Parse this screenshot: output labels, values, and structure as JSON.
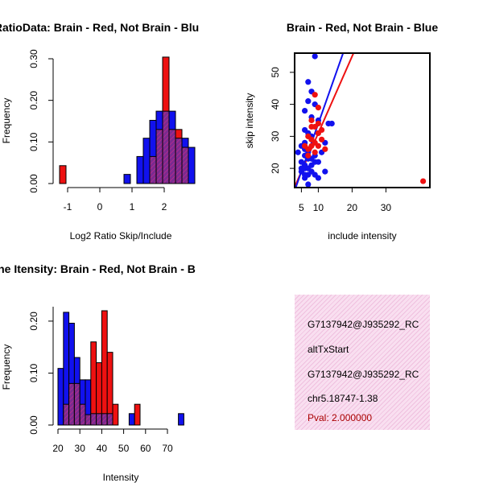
{
  "chart_data": [
    {
      "type": "bar",
      "title": "RatioData: Brain - Red, Not Brain - Blu",
      "xlabel": "Log2 Ratio Skip/Include",
      "ylabel": "Frequency",
      "xticks": [
        "-1",
        "0",
        "1",
        "2"
      ],
      "yticks": [
        "0.00",
        "0.10",
        "0.20",
        "0.30"
      ],
      "ylim": [
        0,
        0.3
      ],
      "x_start": -1.25,
      "bin_width": 0.2,
      "series": [
        {
          "name": "Brain",
          "color": "#ee1111",
          "values": [
            0.043,
            0,
            0,
            0,
            0,
            0,
            0,
            0,
            0,
            0,
            0,
            0,
            0,
            0,
            0.065,
            0.13,
            0.304,
            0.13,
            0.13,
            0.087,
            0
          ]
        },
        {
          "name": "Not Brain",
          "color": "#1111ee",
          "values": [
            0,
            0,
            0,
            0,
            0,
            0,
            0,
            0,
            0,
            0,
            0.022,
            0,
            0.065,
            0.109,
            0.152,
            0.174,
            0.174,
            0.174,
            0.109,
            0.109,
            0.087
          ]
        }
      ],
      "overlap_color": "#8b238b"
    },
    {
      "type": "scatter",
      "title": "Brain - Red, Not Brain - Blue",
      "xlabel": "include intensity",
      "ylabel": "skip intensity",
      "xticks": [
        "5",
        "10",
        "20",
        "30"
      ],
      "yticks": [
        "20",
        "30",
        "40",
        "50"
      ],
      "xlim": [
        3,
        43
      ],
      "ylim": [
        14,
        56
      ],
      "series": [
        {
          "name": "Brain",
          "color": "#ee1111",
          "points": [
            [
              41,
              16
            ],
            [
              9,
              43
            ],
            [
              10,
              39
            ],
            [
              8,
              35
            ],
            [
              9,
              33
            ],
            [
              10,
              31
            ],
            [
              11,
              29
            ],
            [
              8,
              27
            ],
            [
              7,
              26
            ],
            [
              9,
              25
            ],
            [
              10,
              27
            ],
            [
              12,
              26
            ],
            [
              7,
              30
            ],
            [
              8,
              33
            ],
            [
              10,
              34
            ],
            [
              9,
              28
            ],
            [
              6,
              27
            ],
            [
              11,
              32
            ],
            [
              7,
              24
            ],
            [
              8,
              29
            ]
          ],
          "fit": {
            "intercept": 7.0,
            "slope": 2.4
          }
        },
        {
          "name": "Not Brain",
          "color": "#1111ee",
          "points": [
            [
              9,
              55
            ],
            [
              7,
              47
            ],
            [
              8,
              44
            ],
            [
              7,
              41
            ],
            [
              9,
              40
            ],
            [
              6,
              38
            ],
            [
              8,
              36
            ],
            [
              10,
              35
            ],
            [
              13,
              34
            ],
            [
              14,
              34
            ],
            [
              6,
              32
            ],
            [
              7,
              31
            ],
            [
              8,
              29
            ],
            [
              5,
              27
            ],
            [
              4,
              25
            ],
            [
              6,
              24
            ],
            [
              7,
              23
            ],
            [
              9,
              22
            ],
            [
              6,
              21
            ],
            [
              5,
              20
            ],
            [
              6,
              20
            ],
            [
              8,
              19
            ],
            [
              12,
              19
            ],
            [
              7,
              18
            ],
            [
              6,
              17
            ],
            [
              9,
              18
            ],
            [
              10,
              17
            ],
            [
              5,
              22
            ],
            [
              6,
              26
            ],
            [
              6,
              28
            ],
            [
              7,
              25
            ],
            [
              8,
              21
            ],
            [
              7,
              15
            ],
            [
              9,
              24
            ],
            [
              8,
              23
            ],
            [
              7,
              20
            ],
            [
              5,
              19
            ],
            [
              6,
              18
            ],
            [
              10,
              22
            ],
            [
              11,
              25
            ],
            [
              8,
              30
            ],
            [
              12,
              28
            ]
          ],
          "fit": {
            "intercept": 4.0,
            "slope": 3.0
          }
        }
      ]
    },
    {
      "type": "bar",
      "title": "ne Itensity: Brain - Red, Not Brain - B",
      "xlabel": "Intensity",
      "ylabel": "Frequency",
      "xticks": [
        "20",
        "30",
        "40",
        "50",
        "60",
        "70"
      ],
      "yticks": [
        "0.00",
        "0.10",
        "0.20"
      ],
      "ylim": [
        0,
        0.22
      ],
      "x_start": 20,
      "bin_width": 2.5,
      "series": [
        {
          "name": "Brain",
          "color": "#ee1111",
          "values": [
            0,
            0.04,
            0.08,
            0.08,
            0.04,
            0.02,
            0.16,
            0.12,
            0.22,
            0.14,
            0.04,
            0,
            0,
            0,
            0.04,
            0,
            0,
            0,
            0,
            0,
            0,
            0,
            0
          ]
        },
        {
          "name": "Not Brain",
          "color": "#1111ee",
          "values": [
            0.109,
            0.217,
            0.196,
            0.13,
            0.087,
            0.087,
            0.022,
            0.022,
            0.022,
            0.022,
            0,
            0,
            0,
            0.022,
            0,
            0,
            0,
            0,
            0,
            0,
            0,
            0,
            0.022
          ]
        }
      ],
      "overlap_color": "#8b238b"
    }
  ],
  "info": {
    "id1": "G7137942@J935292_RC",
    "type": "altTxStart",
    "id2": "G7137942@J935292_RC",
    "coords": "chr5.18747-1.38",
    "pval": "Pval: 2.000000",
    "pval_color": "#aa0000"
  }
}
